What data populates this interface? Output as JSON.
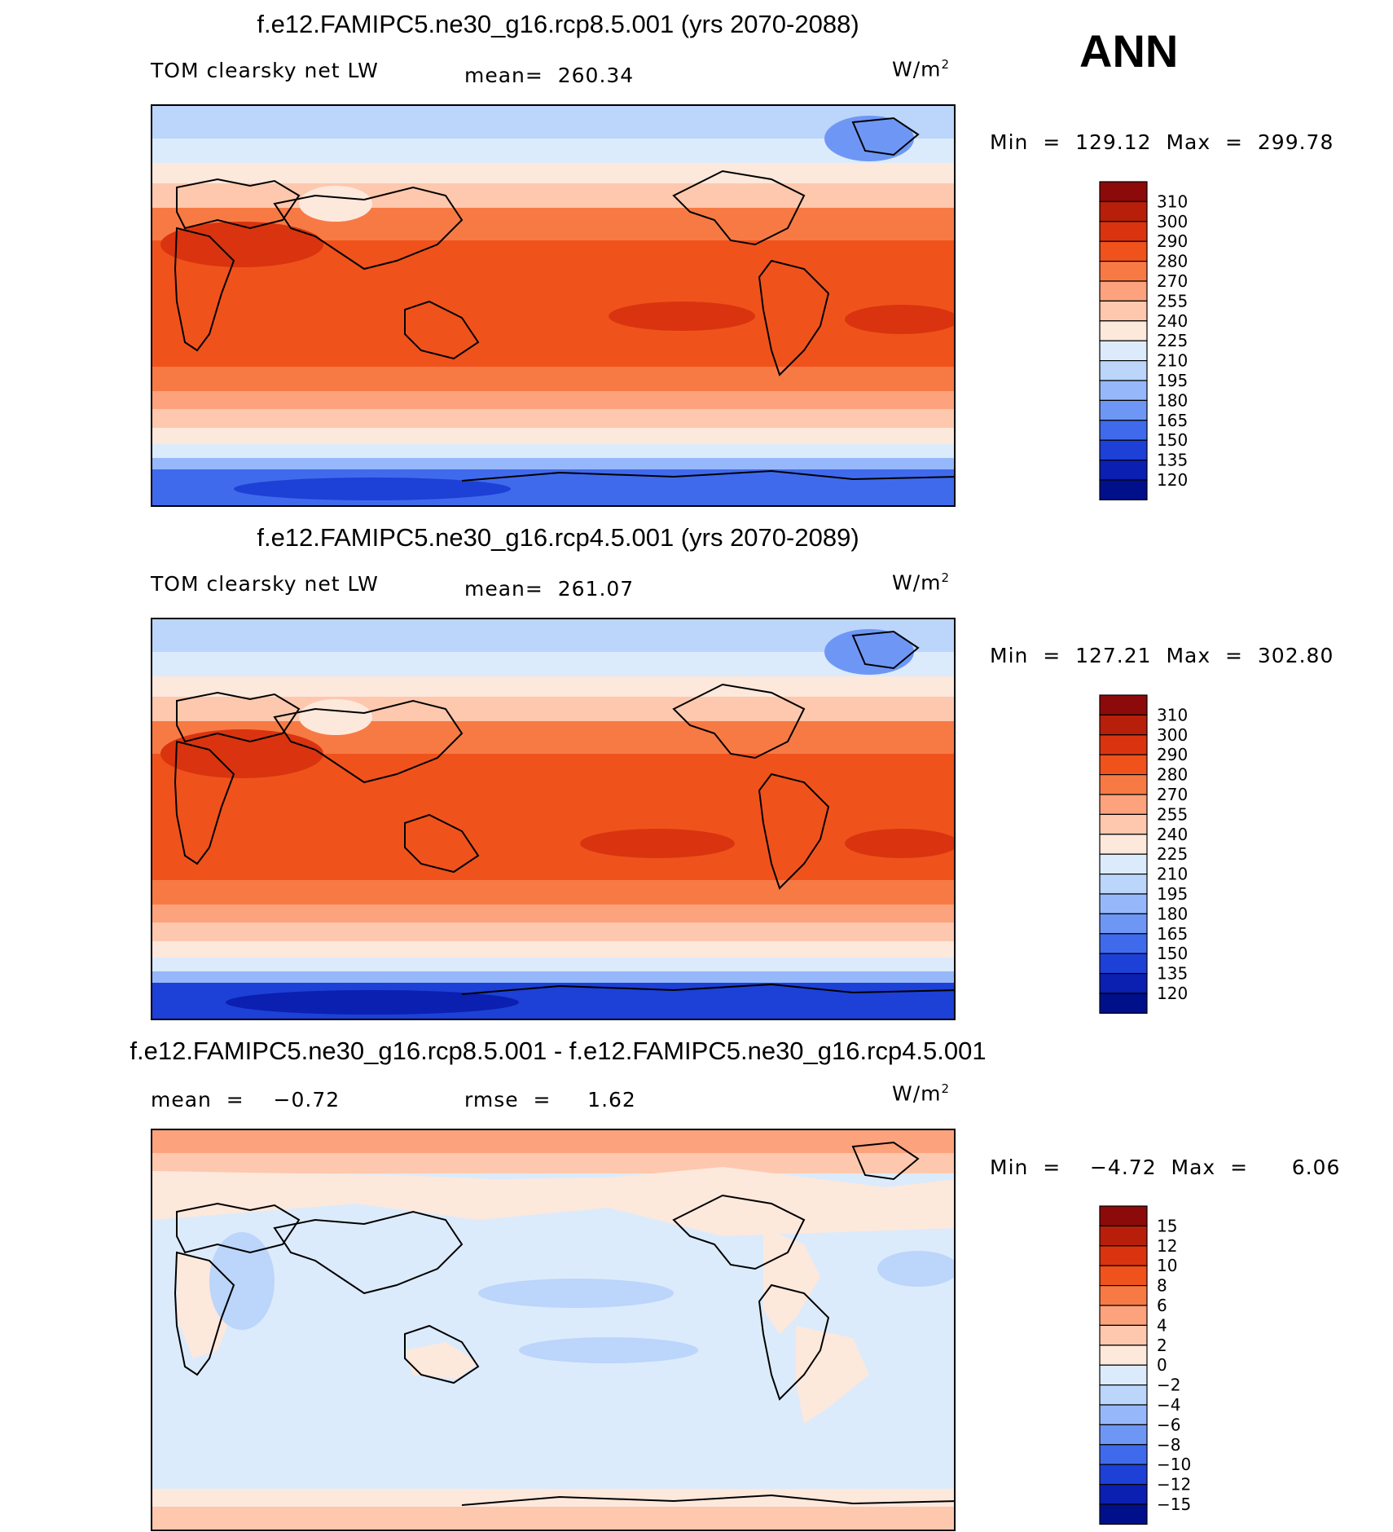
{
  "season": "ANN",
  "units": "W/m",
  "units_exp": "2",
  "panels": [
    {
      "title": "f.e12.FAMIPC5.ne30_g16.rcp8.5.001 (yrs 2070-2088)",
      "variable": "TOM clearsky net LW",
      "stat": "mean=  260.34",
      "minmax": "Min  =  129.12  Max  =  299.78",
      "levels": [
        "310",
        "300",
        "290",
        "280",
        "270",
        "255",
        "240",
        "225",
        "210",
        "195",
        "180",
        "165",
        "150",
        "135",
        "120"
      ],
      "colors": [
        "#8c0a0a",
        "#b81f0a",
        "#d9340f",
        "#f0521c",
        "#f77a45",
        "#fca27c",
        "#fdc8ad",
        "#fde8dc",
        "#dcebfb",
        "#bbd5fb",
        "#96b8fa",
        "#6e97f5",
        "#3f6aec",
        "#1d40d6",
        "#0b1fb0",
        "#00108a"
      ],
      "map_levels": {
        "polar_south": "135",
        "subpolar": "195",
        "mid": "255",
        "subtropic": "280",
        "tropic": "290",
        "peak": "300"
      },
      "mean_value": 260.34,
      "min": 129.12,
      "max": 299.78
    },
    {
      "title": "f.e12.FAMIPC5.ne30_g16.rcp4.5.001 (yrs 2070-2089)",
      "variable": "TOM clearsky net LW",
      "stat": "mean=  261.07",
      "minmax": "Min  =  127.21  Max  =  302.80",
      "levels": [
        "310",
        "300",
        "290",
        "280",
        "270",
        "255",
        "240",
        "225",
        "210",
        "195",
        "180",
        "165",
        "150",
        "135",
        "120"
      ],
      "colors": [
        "#8c0a0a",
        "#b81f0a",
        "#d9340f",
        "#f0521c",
        "#f77a45",
        "#fca27c",
        "#fdc8ad",
        "#fde8dc",
        "#dcebfb",
        "#bbd5fb",
        "#96b8fa",
        "#6e97f5",
        "#3f6aec",
        "#1d40d6",
        "#0b1fb0",
        "#00108a"
      ],
      "mean_value": 261.07,
      "min": 127.21,
      "max": 302.8
    },
    {
      "title": "f.e12.FAMIPC5.ne30_g16.rcp8.5.001 - f.e12.FAMIPC5.ne30_g16.rcp4.5.001",
      "stat_left": "mean  =    −0.72",
      "stat": "rmse  =     1.62",
      "minmax": "Min  =    −4.72  Max  =      6.06",
      "levels": [
        "15",
        "12",
        "10",
        "8",
        "6",
        "4",
        "2",
        "0",
        "−2",
        "−4",
        "−6",
        "−8",
        "−10",
        "−12",
        "−15"
      ],
      "colors": [
        "#8c0a0a",
        "#b81f0a",
        "#d9340f",
        "#f0521c",
        "#f77a45",
        "#fca27c",
        "#fdc8ad",
        "#fde8dc",
        "#dcebfb",
        "#bbd5fb",
        "#96b8fa",
        "#6e97f5",
        "#3f6aec",
        "#1d40d6",
        "#0b1fb0",
        "#00108a"
      ],
      "mean_value": -0.72,
      "rmse": 1.62,
      "min": -4.72,
      "max": 6.06
    }
  ]
}
